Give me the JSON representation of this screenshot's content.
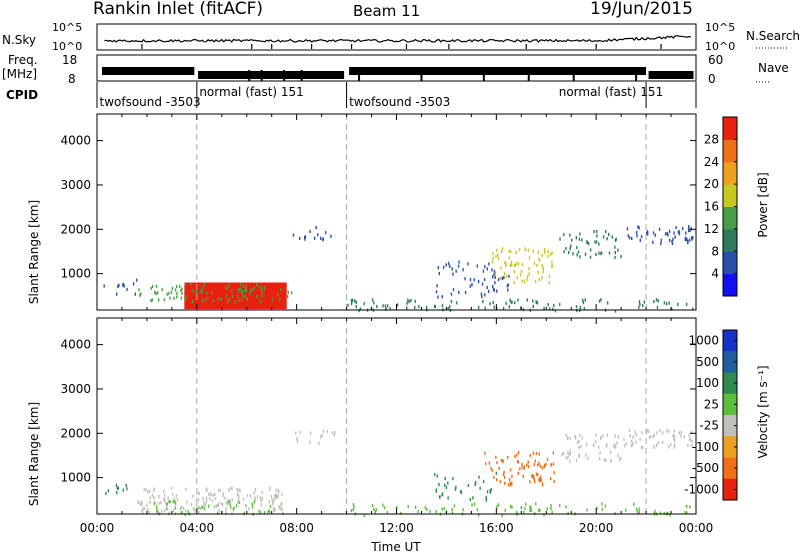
{
  "header": {
    "station": "Rankin Inlet (fitACF)",
    "beam": "Beam 11",
    "date": "19/Jun/2015"
  },
  "top_panels": {
    "nsky_label": "N.Sky",
    "nsky_ticks": [
      "10^5",
      "10^0"
    ],
    "nsearch_label": "N.Search",
    "nsearch_ticks": [
      "10^5",
      "10^0"
    ],
    "freq_label_1": "Freq.",
    "freq_label_2": "[MHz]",
    "freq_ticks": [
      "18",
      "8"
    ],
    "nave_label": "Nave",
    "nave_ticks": [
      "60",
      "0"
    ],
    "cpid_label": "CPID",
    "cpid_segments": [
      {
        "label": "twofsound -3503",
        "start_h": 0.0,
        "end_h": 4.0
      },
      {
        "label": "normal (fast) 151",
        "start_h": 4.0,
        "end_h": 10.0
      },
      {
        "label": "twofsound -3503",
        "start_h": 10.0,
        "end_h": 22.0
      },
      {
        "label": "normal (fast) 151",
        "start_h": 22.0,
        "end_h": 24.0
      }
    ],
    "cpid_label_positions_h": [
      0.1,
      4.1,
      10.1,
      18.5
    ]
  },
  "chart_data": [
    {
      "type": "heatmap",
      "title": "Power",
      "xlabel": "",
      "ylabel": "Slant Range [km]",
      "xlim": [
        0,
        24
      ],
      "ylim": [
        180,
        4600
      ],
      "x_ticks": [],
      "y_ticks": [
        "1000",
        "2000",
        "3000",
        "4000"
      ],
      "y_tick_values": [
        1000,
        2000,
        3000,
        4000
      ],
      "dashed_lines_h": [
        4,
        10,
        22
      ],
      "colorbar_label": "Power [dB]",
      "colorbar_ticks": [
        "4",
        "8",
        "12",
        "16",
        "20",
        "24",
        "28"
      ],
      "colorbar_colors": [
        "#1010f0",
        "#2a4fa8",
        "#2f7a5c",
        "#47a047",
        "#c8c820",
        "#f0a020",
        "#f07018",
        "#e8200e"
      ]
    },
    {
      "type": "heatmap",
      "title": "Velocity",
      "xlabel": "Time UT",
      "ylabel": "Slant Range [km]",
      "xlim": [
        0,
        24
      ],
      "ylim": [
        180,
        4600
      ],
      "x_ticks": [
        "00:00",
        "04:00",
        "08:00",
        "12:00",
        "16:00",
        "20:00",
        "00:00"
      ],
      "x_tick_values": [
        0,
        4,
        8,
        12,
        16,
        20,
        24
      ],
      "y_ticks": [
        "1000",
        "2000",
        "3000",
        "4000"
      ],
      "y_tick_values": [
        1000,
        2000,
        3000,
        4000
      ],
      "dashed_lines_h": [
        4,
        10,
        22
      ],
      "colorbar_label": "Velocity [m s⁻¹]",
      "colorbar_ticks": [
        "1000",
        "500",
        "100",
        "25",
        "-25",
        "-100",
        "-500",
        "-1000"
      ],
      "colorbar_colors": [
        "#1533c8",
        "#1f5fa0",
        "#2f8a4f",
        "#5ac03a",
        "#c0c0b8",
        "#f0a020",
        "#f07018",
        "#e82010"
      ]
    }
  ],
  "scatter_regions": [
    {
      "panel": 0,
      "h0": 3.5,
      "h1": 7.6,
      "r0": 200,
      "r1": 800,
      "color": "#e8200e",
      "density": "solid"
    },
    {
      "panel": 0,
      "h0": 1.6,
      "h1": 7.8,
      "r0": 400,
      "r1": 800,
      "color": "#47a047",
      "density": 0.5
    },
    {
      "panel": 0,
      "h0": 0.2,
      "h1": 1.6,
      "r0": 550,
      "r1": 900,
      "color": "#2a4fa8",
      "density": 0.3
    },
    {
      "panel": 0,
      "h0": 7.8,
      "h1": 9.5,
      "r0": 1800,
      "r1": 2100,
      "color": "#2a4fa8",
      "density": 0.35
    },
    {
      "panel": 0,
      "h0": 13.5,
      "h1": 16.5,
      "r0": 500,
      "r1": 1300,
      "color": "#2a4fa8",
      "density": 0.3
    },
    {
      "panel": 0,
      "h0": 15.8,
      "h1": 18.3,
      "r0": 800,
      "r1": 1600,
      "color": "#c8c820",
      "density": 0.45
    },
    {
      "panel": 0,
      "h0": 18.5,
      "h1": 21.0,
      "r0": 1400,
      "r1": 2000,
      "color": "#2f7a5c",
      "density": 0.4
    },
    {
      "panel": 0,
      "h0": 21.0,
      "h1": 23.9,
      "r0": 1700,
      "r1": 2100,
      "color": "#2a4fa8",
      "density": 0.55
    },
    {
      "panel": 0,
      "h0": 10.0,
      "h1": 23.9,
      "r0": 180,
      "r1": 450,
      "color": "#2f7a5c",
      "density": 0.35
    },
    {
      "panel": 1,
      "h0": 1.6,
      "h1": 7.6,
      "r0": 200,
      "r1": 800,
      "color": "#c0c0b8",
      "density": 0.6
    },
    {
      "panel": 1,
      "h0": 2.2,
      "h1": 7.0,
      "r0": 200,
      "r1": 500,
      "color": "#5ac03a",
      "density": 0.35
    },
    {
      "panel": 1,
      "h0": 0.2,
      "h1": 1.6,
      "r0": 550,
      "r1": 900,
      "color": "#2f8a4f",
      "density": 0.25
    },
    {
      "panel": 1,
      "h0": 7.8,
      "h1": 9.5,
      "r0": 1800,
      "r1": 2100,
      "color": "#c0c0b8",
      "density": 0.35
    },
    {
      "panel": 1,
      "h0": 15.5,
      "h1": 18.3,
      "r0": 800,
      "r1": 1600,
      "color": "#f07018",
      "density": 0.45
    },
    {
      "panel": 1,
      "h0": 18.5,
      "h1": 21.0,
      "r0": 1400,
      "r1": 2000,
      "color": "#c0c0b8",
      "density": 0.45
    },
    {
      "panel": 1,
      "h0": 21.0,
      "h1": 23.9,
      "r0": 1700,
      "r1": 2100,
      "color": "#c0c0b8",
      "density": 0.6
    },
    {
      "panel": 1,
      "h0": 10.0,
      "h1": 23.9,
      "r0": 180,
      "r1": 450,
      "color": "#5ac03a",
      "density": 0.3
    },
    {
      "panel": 1,
      "h0": 13.5,
      "h1": 16.0,
      "r0": 500,
      "r1": 1200,
      "color": "#2f8a4f",
      "density": 0.25
    }
  ]
}
